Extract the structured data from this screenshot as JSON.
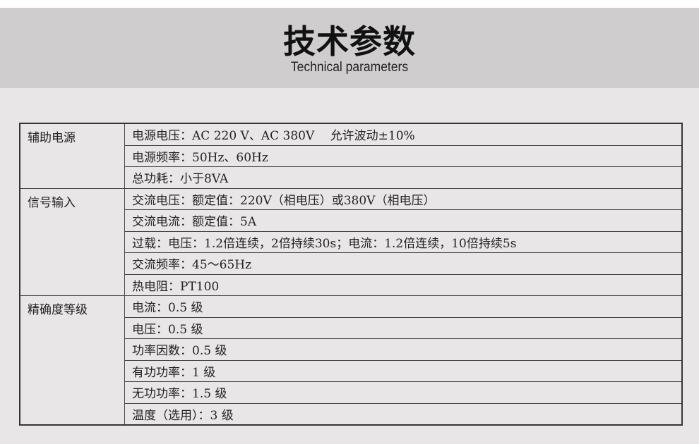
{
  "header": {
    "title": "技术参数",
    "subtitle": "Technical parameters"
  },
  "table": {
    "groups": [
      {
        "category": "辅助电源",
        "items": [
          "电源电压：AC 220 V、AC 380V　 允许波动±10%",
          "电源频率：50Hz、60Hz",
          "总功耗：小于8VA"
        ]
      },
      {
        "category": "信号输入",
        "items": [
          "交流电压：额定值：220V（相电压）或380V（相电压）",
          "交流电流：额定值：5A",
          "过载：电压：1.2倍连续，2倍持续30s；电流：1.2倍连续，10倍持续5s",
          "交流频率：45～65Hz",
          "热电阻：PT100"
        ]
      },
      {
        "category": "精确度等级",
        "items": [
          "电流：0.5 级",
          "电压：0.5 级",
          "功率因数：0.5 级",
          "有功功率：1 级",
          "无功功率：1.5 级",
          "温度（选用）：3 级"
        ]
      }
    ]
  }
}
